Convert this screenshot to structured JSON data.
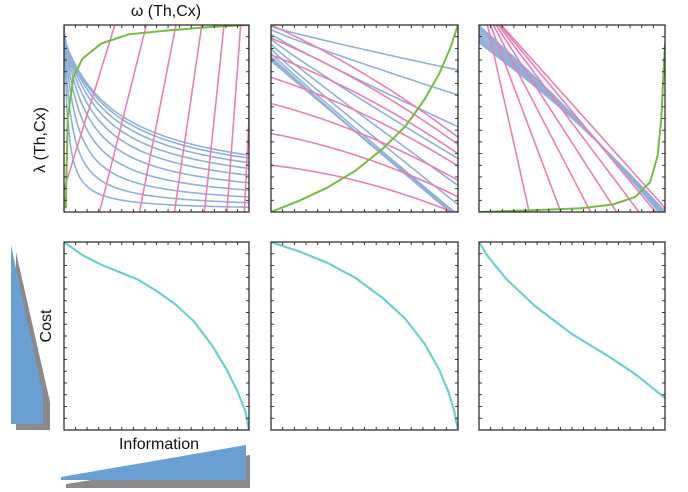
{
  "labels": {
    "omega": "ω (Th,Cx)",
    "lambda": "λ (Th,Cx)",
    "cost": "Cost",
    "information": "Information"
  },
  "colors": {
    "blue_curves": "#8fb0d8",
    "pink_curves": "#e77fb6",
    "green_curve": "#77bb44",
    "cyan_curve": "#6fcfcf",
    "wedge_fill": "#6a9fd4",
    "wedge_shadow": "#8a8a8a",
    "frame": "#222222"
  },
  "chart_data": [
    {
      "type": "line",
      "panel": "contour-left",
      "xlabel": "ω (Th,Cx)",
      "ylabel": "λ (Th,Cx)",
      "xlim": [
        0,
        1
      ],
      "ylim": [
        0,
        1
      ],
      "series": [
        {
          "kind": "green",
          "x": [
            0.01,
            0.02,
            0.05,
            0.1,
            0.2,
            0.35,
            0.55,
            0.8,
            1.0
          ],
          "y": [
            0.02,
            0.5,
            0.72,
            0.82,
            0.9,
            0.95,
            0.97,
            0.99,
            1.0
          ]
        }
      ]
    },
    {
      "type": "line",
      "panel": "contour-middle",
      "xlim": [
        0,
        1
      ],
      "ylim": [
        0,
        1
      ],
      "series": [
        {
          "kind": "green",
          "x": [
            0.0,
            0.15,
            0.3,
            0.45,
            0.6,
            0.72,
            0.82,
            0.9,
            0.96,
            1.0
          ],
          "y": [
            0.0,
            0.06,
            0.13,
            0.22,
            0.34,
            0.46,
            0.6,
            0.74,
            0.88,
            1.0
          ]
        }
      ]
    },
    {
      "type": "line",
      "panel": "contour-right",
      "xlim": [
        0,
        1
      ],
      "ylim": [
        0,
        1
      ],
      "series": [
        {
          "kind": "green",
          "x": [
            0.0,
            0.3,
            0.55,
            0.72,
            0.84,
            0.92,
            0.96,
            0.98,
            0.99,
            1.0
          ],
          "y": [
            0.0,
            0.01,
            0.02,
            0.04,
            0.08,
            0.16,
            0.3,
            0.5,
            0.7,
            0.9
          ]
        }
      ]
    },
    {
      "type": "line",
      "panel": "cost-left",
      "xlabel": "Information",
      "ylabel": "Cost",
      "xlim": [
        0,
        1
      ],
      "ylim": [
        0,
        1
      ],
      "series": [
        {
          "kind": "cyan",
          "x": [
            0.0,
            0.1,
            0.2,
            0.3,
            0.4,
            0.5,
            0.6,
            0.7,
            0.8,
            0.88,
            0.94,
            0.98,
            1.0
          ],
          "y": [
            1.0,
            0.93,
            0.88,
            0.84,
            0.8,
            0.74,
            0.67,
            0.58,
            0.45,
            0.32,
            0.2,
            0.1,
            0.0
          ]
        }
      ]
    },
    {
      "type": "line",
      "panel": "cost-middle",
      "xlim": [
        0,
        1
      ],
      "ylim": [
        0,
        1
      ],
      "series": [
        {
          "kind": "cyan",
          "x": [
            0.0,
            0.15,
            0.3,
            0.45,
            0.6,
            0.72,
            0.82,
            0.9,
            0.95,
            0.98,
            1.0
          ],
          "y": [
            1.0,
            0.95,
            0.89,
            0.81,
            0.7,
            0.59,
            0.46,
            0.32,
            0.2,
            0.1,
            0.0
          ]
        }
      ]
    },
    {
      "type": "line",
      "panel": "cost-right",
      "xlim": [
        0,
        1
      ],
      "ylim": [
        0,
        1
      ],
      "series": [
        {
          "kind": "cyan",
          "x": [
            0.0,
            0.05,
            0.15,
            0.3,
            0.5,
            0.7,
            0.85,
            1.0
          ],
          "y": [
            1.0,
            0.92,
            0.8,
            0.66,
            0.51,
            0.39,
            0.29,
            0.17
          ]
        }
      ]
    }
  ]
}
